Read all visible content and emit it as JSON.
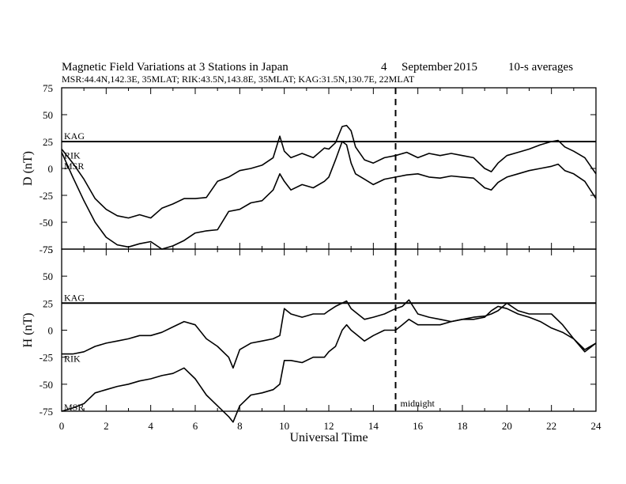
{
  "chart_data": {
    "type": "line",
    "title": "Magnetic Field Variations at 3 Stations in Japan",
    "date_day": "4",
    "date_month": "September",
    "date_year": "2015",
    "averaging": "10-s averages",
    "stations_line": "MSR:44.4N,142.3E, 35MLAT;  RIK:43.5N,143.8E, 35MLAT;  KAG:31.5N,130.7E, 22MLAT",
    "xlabel": "Universal Time",
    "xlim": [
      0,
      24
    ],
    "x_ticks": [
      "0",
      "2",
      "4",
      "6",
      "8",
      "10",
      "12",
      "14",
      "16",
      "18",
      "20",
      "22",
      "24"
    ],
    "midnight_x": 15,
    "midnight_label": "midnight",
    "panels": [
      {
        "ylabel": "D (nT)",
        "ylim": [
          -75,
          75
        ],
        "y_ticks": [
          "75",
          "50",
          "25",
          "0",
          "-25",
          "-50",
          "-75"
        ],
        "series": [
          {
            "name": "KAG",
            "x": [
              0,
              24
            ],
            "y": [
              25,
              25
            ]
          },
          {
            "name": "RIK",
            "x": [
              0,
              0.5,
              1,
              1.5,
              2,
              2.5,
              3,
              3.5,
              4,
              4.5,
              5,
              5.5,
              6,
              6.5,
              7,
              7.5,
              8,
              8.5,
              9,
              9.5,
              9.8,
              10,
              10.3,
              10.8,
              11.3,
              11.8,
              12,
              12.3,
              12.6,
              12.8,
              13,
              13.2,
              13.6,
              14,
              14.5,
              15,
              15.5,
              16,
              16.5,
              17,
              17.5,
              18,
              18.5,
              19,
              19.3,
              19.6,
              20,
              20.5,
              21,
              21.5,
              22,
              22.3,
              22.6,
              23,
              23.5,
              24
            ],
            "y": [
              18,
              5,
              -10,
              -28,
              -38,
              -44,
              -46,
              -43,
              -46,
              -37,
              -33,
              -28,
              -28,
              -27,
              -12,
              -8,
              -2,
              0,
              3,
              10,
              30,
              16,
              10,
              14,
              10,
              19,
              18,
              24,
              39,
              40,
              35,
              20,
              8,
              5,
              10,
              12,
              15,
              10,
              14,
              12,
              14,
              12,
              10,
              0,
              -3,
              5,
              12,
              15,
              18,
              22,
              25,
              26,
              20,
              16,
              10,
              -5
            ]
          },
          {
            "name": "MSR",
            "x": [
              0,
              0.5,
              1,
              1.5,
              2,
              2.5,
              3,
              3.5,
              4,
              4.5,
              5,
              5.5,
              6,
              6.5,
              7,
              7.5,
              8,
              8.5,
              9,
              9.5,
              9.8,
              10,
              10.3,
              10.8,
              11.3,
              11.8,
              12,
              12.3,
              12.6,
              12.8,
              13,
              13.2,
              13.6,
              14,
              14.5,
              15,
              15.5,
              16,
              16.5,
              17,
              17.5,
              18,
              18.5,
              19,
              19.3,
              19.6,
              20,
              20.5,
              21,
              21.5,
              22,
              22.3,
              22.6,
              23,
              23.5,
              24
            ],
            "y": [
              15,
              -8,
              -30,
              -50,
              -64,
              -71,
              -73,
              -70,
              -68,
              -75,
              -72,
              -67,
              -60,
              -58,
              -57,
              -40,
              -38,
              -32,
              -30,
              -20,
              -5,
              -12,
              -20,
              -15,
              -18,
              -12,
              -8,
              8,
              25,
              22,
              5,
              -5,
              -10,
              -15,
              -10,
              -8,
              -6,
              -5,
              -8,
              -9,
              -7,
              -8,
              -9,
              -18,
              -20,
              -13,
              -8,
              -5,
              -2,
              0,
              2,
              4,
              -2,
              -5,
              -12,
              -28
            ]
          }
        ]
      },
      {
        "ylabel": "H (nT)",
        "ylim": [
          -75,
          75
        ],
        "y_ticks": [
          "75",
          "50",
          "25",
          "0",
          "-25",
          "-50",
          "-75"
        ],
        "series": [
          {
            "name": "KAG",
            "x": [
              0,
              24
            ],
            "y": [
              25,
              25
            ]
          },
          {
            "name": "RIK",
            "x": [
              0,
              0.5,
              1,
              1.5,
              2,
              2.5,
              3,
              3.5,
              4,
              4.5,
              5,
              5.5,
              6,
              6.5,
              7,
              7.5,
              7.7,
              8,
              8.5,
              9,
              9.5,
              9.8,
              10,
              10.3,
              10.8,
              11.3,
              11.8,
              12,
              12.3,
              12.6,
              12.8,
              13,
              13.3,
              13.6,
              14,
              14.5,
              15,
              15.3,
              15.6,
              16,
              16.5,
              17,
              17.5,
              18,
              18.5,
              19,
              19.3,
              19.6,
              20,
              20.5,
              21,
              21.5,
              22,
              22.5,
              23,
              23.5,
              24
            ],
            "y": [
              -22,
              -22,
              -20,
              -15,
              -12,
              -10,
              -8,
              -5,
              -5,
              -2,
              3,
              8,
              5,
              -8,
              -15,
              -25,
              -35,
              -18,
              -12,
              -10,
              -8,
              -5,
              20,
              15,
              12,
              15,
              15,
              18,
              22,
              25,
              27,
              20,
              15,
              10,
              12,
              15,
              20,
              22,
              28,
              15,
              12,
              10,
              8,
              10,
              12,
              13,
              15,
              18,
              25,
              18,
              15,
              15,
              15,
              5,
              -8,
              -20,
              -12
            ]
          },
          {
            "name": "MSR",
            "x": [
              0,
              0.5,
              1,
              1.5,
              2,
              2.5,
              3,
              3.5,
              4,
              4.5,
              5,
              5.5,
              6,
              6.5,
              7,
              7.5,
              7.7,
              8,
              8.5,
              9,
              9.5,
              9.8,
              10,
              10.3,
              10.8,
              11.3,
              11.8,
              12,
              12.3,
              12.6,
              12.8,
              13,
              13.3,
              13.6,
              14,
              14.5,
              15,
              15.3,
              15.6,
              16,
              16.5,
              17,
              17.5,
              18,
              18.5,
              19,
              19.3,
              19.6,
              20,
              20.5,
              21,
              21.5,
              22,
              22.5,
              23,
              23.5,
              24
            ],
            "y": [
              -75,
              -72,
              -68,
              -58,
              -55,
              -52,
              -50,
              -47,
              -45,
              -42,
              -40,
              -35,
              -45,
              -60,
              -70,
              -80,
              -85,
              -70,
              -60,
              -58,
              -55,
              -50,
              -28,
              -28,
              -30,
              -25,
              -25,
              -20,
              -15,
              0,
              5,
              0,
              -5,
              -10,
              -5,
              0,
              0,
              5,
              10,
              5,
              5,
              5,
              8,
              10,
              10,
              12,
              18,
              22,
              20,
              15,
              12,
              8,
              2,
              -2,
              -8,
              -18,
              -12
            ]
          }
        ]
      }
    ]
  }
}
